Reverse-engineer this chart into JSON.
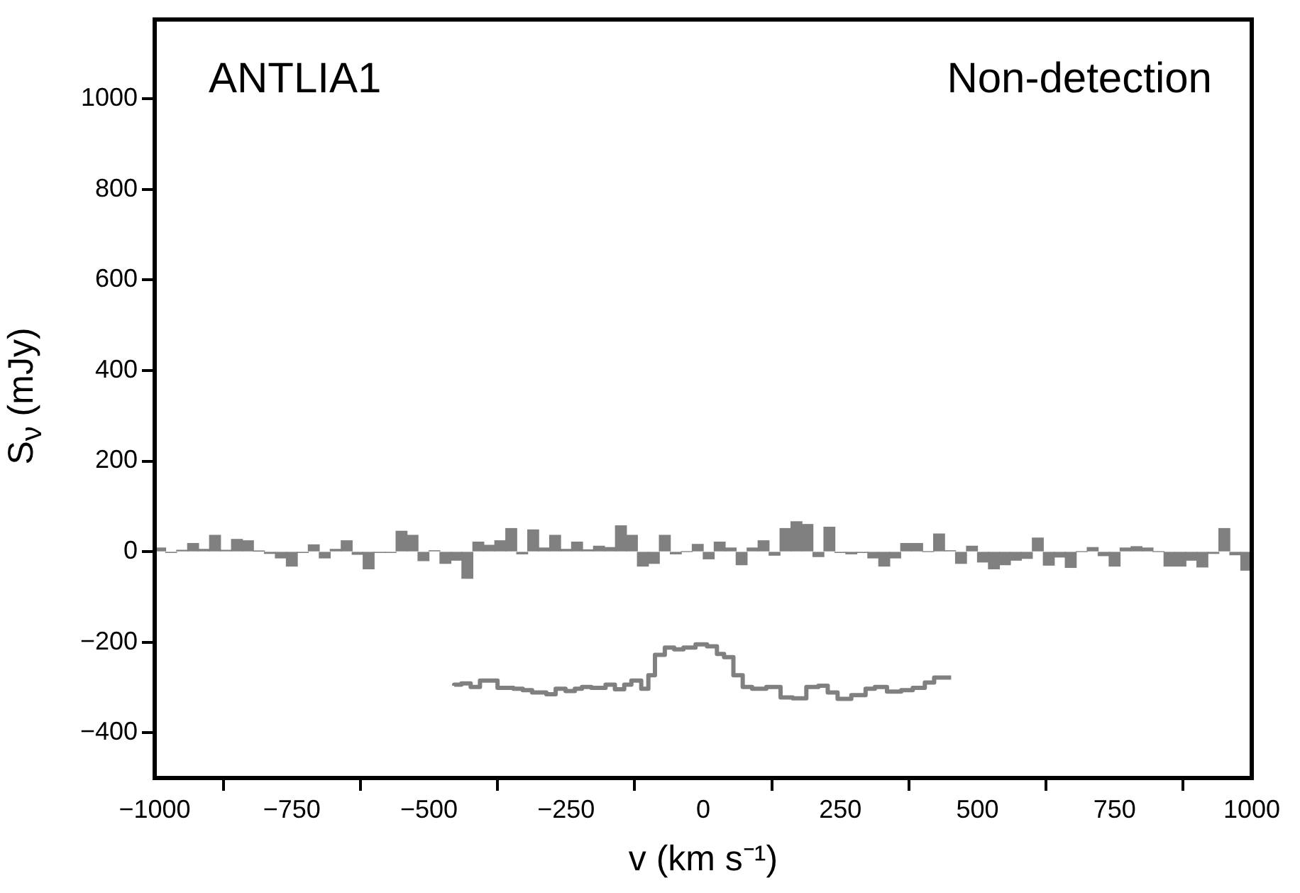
{
  "chart_data": {
    "type": "histogram",
    "xlabel": "v (km s⁻¹)",
    "ylabel": "S$_{ν}$ (mJy)",
    "annotations": [
      "ANTLIA1",
      "Non-detection"
    ],
    "xlim": [
      -1000,
      1000
    ],
    "ylim": [
      -500,
      1175
    ],
    "xticks": [
      {
        "value": -1000,
        "label": "−1000"
      },
      {
        "value": -750,
        "label": "−750"
      },
      {
        "value": -500,
        "label": "−500"
      },
      {
        "value": -250,
        "label": "−250"
      },
      0,
      250,
      500,
      750,
      1000
    ],
    "yticks": [
      {
        "value": -400,
        "label": "−400"
      },
      {
        "value": -200,
        "label": "−200"
      },
      0,
      200,
      400,
      600,
      800,
      1000
    ],
    "grid": false,
    "legend": false,
    "series": [
      {
        "color": "#808080",
        "bins": [
          -1000,
          -980,
          -960,
          -940,
          -920,
          -900,
          -880,
          -860,
          -840,
          -820,
          -800,
          -780,
          -760,
          -740,
          -720,
          -700,
          -680,
          -660,
          -640,
          -620,
          -600,
          -580,
          -560,
          -540,
          -520,
          -500,
          -480,
          -460,
          -440,
          -420,
          -400,
          -380,
          -360,
          -340,
          -320,
          -300,
          -280,
          -260,
          -240,
          -220,
          -200,
          -180,
          -160,
          -140,
          -120,
          -100,
          -80,
          -60,
          -40,
          -20,
          0,
          20,
          40,
          60,
          80,
          100,
          120,
          140,
          160,
          180,
          200,
          220,
          240,
          260,
          280,
          300,
          320,
          340,
          360,
          380,
          400,
          420,
          440,
          460,
          480,
          500,
          520,
          540,
          560,
          580,
          600,
          620,
          640,
          660,
          680,
          700,
          720,
          740,
          760,
          780,
          800,
          820,
          840,
          860,
          880,
          900,
          920,
          940,
          960,
          980,
          1000
        ],
        "values": [
          8,
          -2,
          3,
          18,
          5,
          36,
          3,
          27,
          24,
          1,
          -4,
          -14,
          -32,
          -2,
          15,
          -14,
          5,
          24,
          -6,
          -38,
          -2,
          -2,
          45,
          36,
          -20,
          2,
          -26,
          -19,
          -59,
          21,
          14,
          24,
          51,
          -5,
          48,
          8,
          36,
          5,
          21,
          4,
          12,
          9,
          57,
          36,
          -32,
          -26,
          36,
          -5,
          0,
          16,
          -16,
          21,
          8,
          -29,
          8,
          24,
          -8,
          51,
          66,
          60,
          -11,
          54,
          -2,
          -5,
          -2,
          -14,
          -32,
          -14,
          18,
          18,
          0,
          39,
          2,
          -26,
          12,
          -23,
          -38,
          -29,
          -19,
          -15,
          30,
          -30,
          -12,
          -35,
          0,
          9,
          -9,
          -32,
          8,
          11,
          8,
          0,
          -32,
          -32,
          -19,
          -34,
          -4,
          51,
          -7,
          -41
        ]
      },
      {
        "type": "step",
        "color": "#808080",
        "x": [
          -454,
          -441,
          -424,
          -407,
          -375,
          -346,
          -329,
          -312,
          -286,
          -269,
          -251,
          -234,
          -221,
          -204,
          -178,
          -161,
          -144,
          -131,
          -113,
          -100,
          -88,
          -70,
          -53,
          -36,
          -14,
          7,
          25,
          38,
          55,
          72,
          89,
          115,
          141,
          163,
          188,
          210,
          227,
          245,
          270,
          296,
          313,
          335,
          361,
          382,
          404,
          421,
          434,
          452
        ],
        "values": [
          -296,
          -294,
          -291,
          -299,
          -285,
          -301,
          -303,
          -306,
          -311,
          -315,
          -303,
          -308,
          -303,
          -299,
          -301,
          -294,
          -304,
          -294,
          -285,
          -303,
          -273,
          -228,
          -212,
          -216,
          -212,
          -205,
          -209,
          -226,
          -233,
          -273,
          -299,
          -303,
          -299,
          -322,
          -324,
          -299,
          -296,
          -311,
          -325,
          -317,
          -303,
          -299,
          -309,
          -306,
          -301,
          -289,
          -278,
          -278
        ]
      }
    ]
  }
}
